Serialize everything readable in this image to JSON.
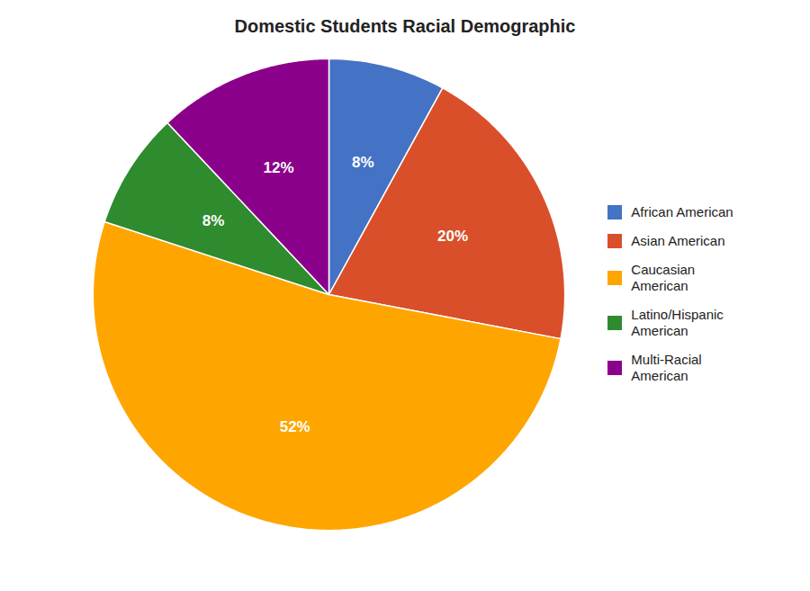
{
  "chart_data": {
    "type": "pie",
    "title": "Domestic Students Racial Demographic",
    "categories": [
      "African American",
      "Asian American",
      "Caucasian\nAmerican",
      "Latino/Hispanic\nAmerican",
      "Multi-Racial\nAmerican"
    ],
    "values": [
      8,
      20,
      52,
      8,
      12
    ],
    "value_labels": [
      "8%",
      "20%",
      "52%",
      "8%",
      "12%"
    ],
    "colors": [
      "#4472C4",
      "#D94F2A",
      "#FFA500",
      "#2E8B2E",
      "#8B008B"
    ],
    "data_labels": true,
    "legend": "right"
  }
}
